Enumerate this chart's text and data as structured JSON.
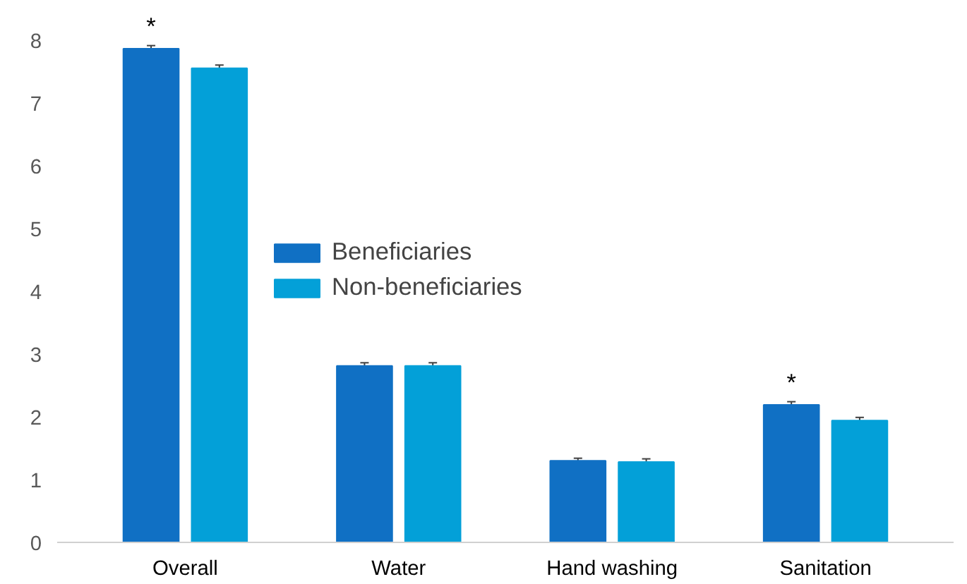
{
  "chart_data": {
    "type": "bar",
    "categories": [
      "Overall",
      "Water",
      "Hand washing",
      "Sanitation"
    ],
    "series": [
      {
        "name": "Beneficiaries",
        "color": "#1070c4",
        "values": [
          7.86,
          2.81,
          1.3,
          2.19
        ],
        "errors": [
          0.05,
          0.05,
          0.04,
          0.05
        ]
      },
      {
        "name": "Non-beneficiaries",
        "color": "#03a0d8",
        "values": [
          7.55,
          2.81,
          1.28,
          1.94
        ],
        "errors": [
          0.05,
          0.05,
          0.05,
          0.05
        ]
      }
    ],
    "ylim": [
      0,
      8
    ],
    "yticks": [
      0,
      1,
      2,
      3,
      4,
      5,
      6,
      7,
      8
    ],
    "grid": false,
    "legend": "center",
    "annotations": [
      "*",
      "*"
    ]
  }
}
